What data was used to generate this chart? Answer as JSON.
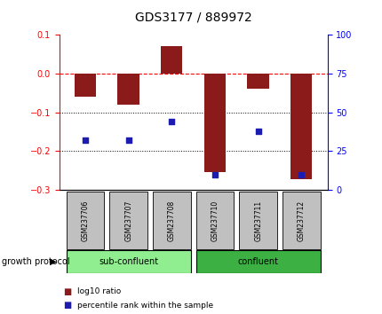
{
  "title": "GDS3177 / 889972",
  "samples": [
    "GSM237706",
    "GSM237707",
    "GSM237708",
    "GSM237710",
    "GSM237711",
    "GSM237712"
  ],
  "log10_ratio": [
    -0.06,
    -0.08,
    0.07,
    -0.255,
    -0.04,
    -0.272
  ],
  "percentile_rank": [
    32,
    32,
    44,
    10,
    38,
    10
  ],
  "bar_color": "#8B1A1A",
  "dot_color": "#1C1CB0",
  "ylim_left": [
    -0.3,
    0.1
  ],
  "ylim_right": [
    0,
    100
  ],
  "yticks_left": [
    -0.3,
    -0.2,
    -0.1,
    0.0,
    0.1
  ],
  "yticks_right": [
    0,
    25,
    50,
    75,
    100
  ],
  "group_sub_color": "#90EE90",
  "group_con_color": "#3CB043",
  "group_sub_label": "sub-confluent",
  "group_con_label": "confluent",
  "group_label_text": "growth protocol",
  "legend_bar_label": "log10 ratio",
  "legend_dot_label": "percentile rank within the sample",
  "title_fontsize": 10,
  "tick_fontsize": 7,
  "sample_box_color": "#C0C0C0"
}
